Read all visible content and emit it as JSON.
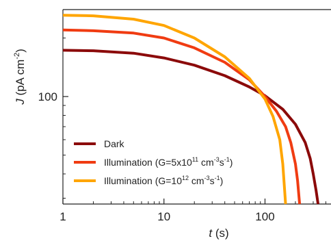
{
  "chart_data": {
    "type": "line",
    "xlabel_var": "t",
    "xlabel_unit": " (s)",
    "ylabel_var": "J",
    "ylabel_unit_base": " (pA cm",
    "ylabel_unit_exp": "-2",
    "ylabel_unit_end": ")",
    "x_scale": "log",
    "y_scale": "log",
    "xlim": [
      1,
      450
    ],
    "ylim": [
      28,
      280
    ],
    "x_ticks": [
      {
        "value": 1,
        "label": "1"
      },
      {
        "value": 10,
        "label": "10"
      },
      {
        "value": 100,
        "label": "100"
      }
    ],
    "y_ticks": [
      {
        "value": 100,
        "label": "100"
      }
    ],
    "grid": false,
    "legend_position": "lower-left",
    "series": [
      {
        "name_parts": [
          {
            "t": "Dark"
          }
        ],
        "color": "#8b0a0a",
        "x": [
          1,
          2,
          5,
          10,
          20,
          40,
          70,
          100,
          150,
          200,
          250,
          280,
          300,
          320,
          335
        ],
        "y": [
          173,
          172,
          167,
          158,
          145,
          128,
          112,
          101,
          86,
          72,
          58,
          48,
          40,
          33,
          28
        ]
      },
      {
        "name_parts": [
          {
            "t": "Illumination (G=5x10"
          },
          {
            "t": "11",
            "sup": true
          },
          {
            "t": " cm"
          },
          {
            "t": "-3",
            "sup": true
          },
          {
            "t": "s"
          },
          {
            "t": "-1",
            "sup": true
          },
          {
            "t": ")"
          }
        ],
        "color": "#f03c12",
        "x": [
          1,
          2,
          5,
          10,
          20,
          40,
          70,
          100,
          130,
          160,
          180,
          200,
          210,
          220
        ],
        "y": [
          220,
          218,
          212,
          200,
          178,
          150,
          122,
          100,
          84,
          70,
          58,
          45,
          37,
          28
        ]
      },
      {
        "name_parts": [
          {
            "t": "Illumination (G=10"
          },
          {
            "t": "12",
            "sup": true
          },
          {
            "t": " cm"
          },
          {
            "t": "-3",
            "sup": true
          },
          {
            "t": "s"
          },
          {
            "t": "-1",
            "sup": true
          },
          {
            "t": ")"
          }
        ],
        "color": "#ffa500",
        "x": [
          1,
          2,
          5,
          10,
          20,
          40,
          70,
          100,
          120,
          140,
          150,
          160
        ],
        "y": [
          262,
          260,
          250,
          232,
          200,
          160,
          124,
          97,
          79,
          60,
          45,
          28
        ]
      }
    ]
  }
}
